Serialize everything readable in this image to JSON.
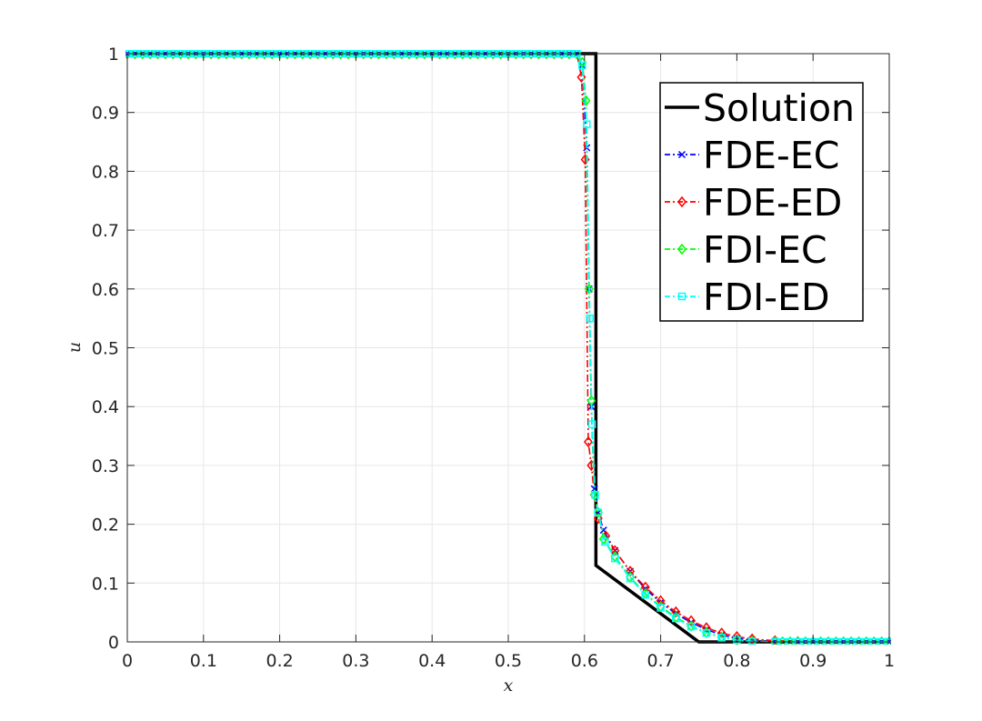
{
  "chart_data": {
    "type": "line",
    "title": "",
    "xlabel": "x",
    "ylabel": "u",
    "xlim": [
      0,
      1
    ],
    "ylim": [
      0,
      1
    ],
    "xticks": [
      0,
      0.1,
      0.2,
      0.3,
      0.4,
      0.5,
      0.6,
      0.7,
      0.8,
      0.9,
      1
    ],
    "yticks": [
      0,
      0.1,
      0.2,
      0.3,
      0.4,
      0.5,
      0.6,
      0.7,
      0.8,
      0.9,
      1
    ],
    "xtick_labels": [
      "0",
      "0.1",
      "0.2",
      "0.3",
      "0.4",
      "0.5",
      "0.6",
      "0.7",
      "0.8",
      "0.9",
      "1"
    ],
    "ytick_labels": [
      "0",
      "0.1",
      "0.2",
      "0.3",
      "0.4",
      "0.5",
      "0.6",
      "0.7",
      "0.8",
      "0.9",
      "1"
    ],
    "grid": true,
    "legend_position": "top-right",
    "series": [
      {
        "name": "Solution",
        "color": "#000000",
        "style": "solid",
        "marker": "none",
        "points": [
          [
            0,
            1
          ],
          [
            0.615,
            1
          ],
          [
            0.615,
            0.13
          ],
          [
            0.75,
            0.0
          ],
          [
            1,
            0.0
          ]
        ]
      },
      {
        "name": "FDE-EC",
        "color": "#0000ff",
        "style": "dashdot",
        "marker": "x",
        "points": [
          [
            0,
            1
          ],
          [
            0.59,
            1
          ],
          [
            0.597,
            0.98
          ],
          [
            0.603,
            0.84
          ],
          [
            0.606,
            0.6
          ],
          [
            0.609,
            0.4
          ],
          [
            0.613,
            0.26
          ],
          [
            0.618,
            0.22
          ],
          [
            0.625,
            0.19
          ],
          [
            0.64,
            0.155
          ],
          [
            0.66,
            0.12
          ],
          [
            0.68,
            0.09
          ],
          [
            0.7,
            0.067
          ],
          [
            0.72,
            0.048
          ],
          [
            0.74,
            0.033
          ],
          [
            0.76,
            0.021
          ],
          [
            0.78,
            0.012
          ],
          [
            0.8,
            0.006
          ],
          [
            0.82,
            0.003
          ],
          [
            0.85,
            0.001
          ],
          [
            0.88,
            0
          ],
          [
            1,
            0
          ]
        ]
      },
      {
        "name": "FDE-ED",
        "color": "#ff0000",
        "style": "dashdot",
        "marker": "diamond",
        "points": [
          [
            0,
            1
          ],
          [
            0.59,
            1
          ],
          [
            0.596,
            0.96
          ],
          [
            0.601,
            0.82
          ],
          [
            0.605,
            0.34
          ],
          [
            0.609,
            0.3
          ],
          [
            0.613,
            0.25
          ],
          [
            0.618,
            0.21
          ],
          [
            0.628,
            0.18
          ],
          [
            0.64,
            0.155
          ],
          [
            0.66,
            0.12
          ],
          [
            0.68,
            0.093
          ],
          [
            0.7,
            0.07
          ],
          [
            0.72,
            0.051
          ],
          [
            0.74,
            0.036
          ],
          [
            0.76,
            0.024
          ],
          [
            0.78,
            0.015
          ],
          [
            0.8,
            0.009
          ],
          [
            0.82,
            0.005
          ],
          [
            0.85,
            0.002
          ],
          [
            0.88,
            0.0005
          ],
          [
            1,
            0
          ]
        ]
      },
      {
        "name": "FDI-EC",
        "color": "#00ff00",
        "style": "dashdot",
        "marker": "diamond",
        "points": [
          [
            0,
            1
          ],
          [
            0.59,
            1
          ],
          [
            0.597,
            0.985
          ],
          [
            0.602,
            0.92
          ],
          [
            0.606,
            0.6
          ],
          [
            0.609,
            0.41
          ],
          [
            0.613,
            0.25
          ],
          [
            0.618,
            0.22
          ],
          [
            0.625,
            0.175
          ],
          [
            0.64,
            0.145
          ],
          [
            0.66,
            0.11
          ],
          [
            0.68,
            0.082
          ],
          [
            0.7,
            0.06
          ],
          [
            0.72,
            0.042
          ],
          [
            0.74,
            0.027
          ],
          [
            0.76,
            0.016
          ],
          [
            0.78,
            0.008
          ],
          [
            0.8,
            0.003
          ],
          [
            0.82,
            0.001
          ],
          [
            0.85,
            0
          ],
          [
            1,
            0
          ]
        ]
      },
      {
        "name": "FDI-ED",
        "color": "#00ffff",
        "style": "dashdot",
        "marker": "square",
        "points": [
          [
            0,
            1
          ],
          [
            0.59,
            1
          ],
          [
            0.597,
            0.98
          ],
          [
            0.603,
            0.88
          ],
          [
            0.607,
            0.55
          ],
          [
            0.61,
            0.37
          ],
          [
            0.614,
            0.25
          ],
          [
            0.618,
            0.22
          ],
          [
            0.627,
            0.17
          ],
          [
            0.64,
            0.142
          ],
          [
            0.66,
            0.108
          ],
          [
            0.68,
            0.08
          ],
          [
            0.7,
            0.058
          ],
          [
            0.72,
            0.04
          ],
          [
            0.74,
            0.026
          ],
          [
            0.76,
            0.015
          ],
          [
            0.78,
            0.007
          ],
          [
            0.8,
            0.003
          ],
          [
            0.82,
            0.001
          ],
          [
            0.85,
            0
          ],
          [
            1,
            0
          ]
        ]
      }
    ]
  }
}
